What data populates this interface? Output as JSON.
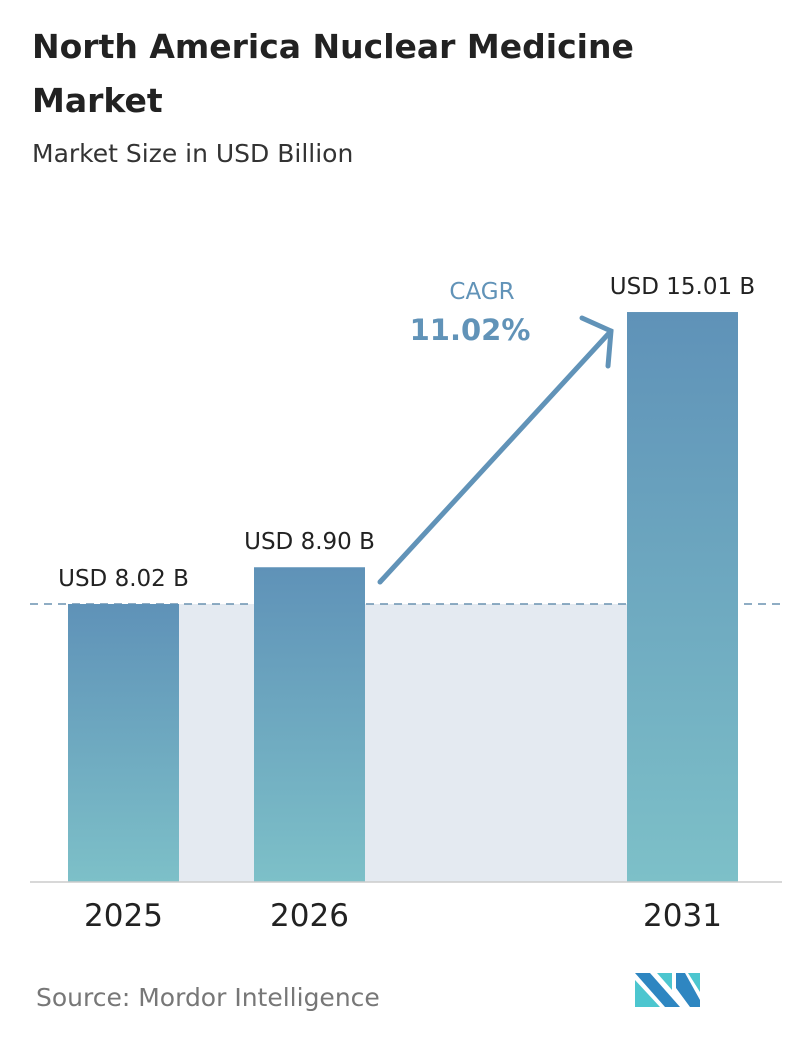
{
  "chart_data": {
    "type": "bar",
    "title": "North America Nuclear Medicine Market",
    "subtitle": "Market Size in USD Billion",
    "categories": [
      "2025",
      "2026",
      "2031"
    ],
    "values": [
      8.02,
      8.9,
      15.01
    ],
    "data_labels": [
      "USD 8.02 B",
      "USD 8.90 B",
      "USD 15.01 B"
    ],
    "annotation": {
      "label": "CAGR",
      "value": "11.02%"
    },
    "grid": false,
    "legend": "none",
    "colors": {
      "bar_top": "#5f92b8",
      "bar_bottom": "#7dc0c8",
      "annotation": "#6193b8",
      "band": "#e4eaf1"
    }
  },
  "source": "Source:  Mordor Intelligence",
  "logo": {
    "name": "mordor-intelligence-logo",
    "text": "MI"
  }
}
